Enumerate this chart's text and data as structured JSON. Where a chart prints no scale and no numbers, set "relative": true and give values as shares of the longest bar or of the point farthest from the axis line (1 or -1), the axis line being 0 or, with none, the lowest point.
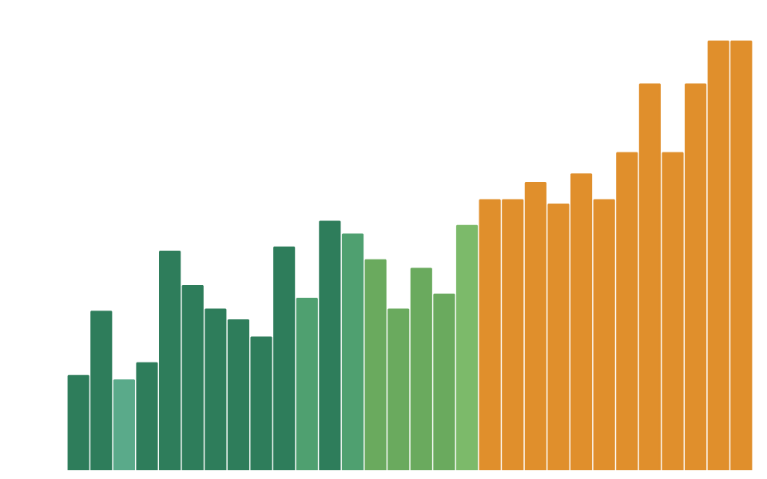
{
  "chart_data": {
    "type": "bar",
    "relative": true,
    "categories": [
      null,
      null,
      null,
      null,
      null,
      null,
      null,
      null,
      null,
      null,
      null,
      null,
      null,
      null,
      null,
      null,
      null,
      null,
      null,
      null,
      null,
      null,
      null,
      null,
      null,
      null,
      null,
      null,
      null,
      null
    ],
    "values": [
      0.22,
      0.37,
      0.21,
      0.25,
      0.51,
      0.43,
      0.375,
      0.35,
      0.31,
      0.52,
      0.4,
      0.58,
      0.55,
      0.49,
      0.375,
      0.47,
      0.41,
      0.57,
      0.63,
      0.63,
      0.67,
      0.62,
      0.69,
      0.63,
      0.74,
      0.9,
      0.74,
      0.9,
      1.0,
      1.0
    ],
    "colors": [
      "#2e7d5b",
      "#2e7d5b",
      "#5aaa8a",
      "#2e7d5b",
      "#2e7d5b",
      "#2e7d5b",
      "#2e7d5b",
      "#2e7d5b",
      "#2e7d5b",
      "#2e7d5b",
      "#4fa070",
      "#2e7d5b",
      "#4fa070",
      "#6aaa5e",
      "#6aaa5e",
      "#6aaa5e",
      "#6aaa5e",
      "#7cba6a",
      "#e08f2c",
      "#e08f2c",
      "#e08f2c",
      "#e08f2c",
      "#e08f2c",
      "#e08f2c",
      "#e08f2c",
      "#e08f2c",
      "#e08f2c",
      "#e08f2c",
      "#e08f2c",
      "#e08f2c"
    ]
  }
}
